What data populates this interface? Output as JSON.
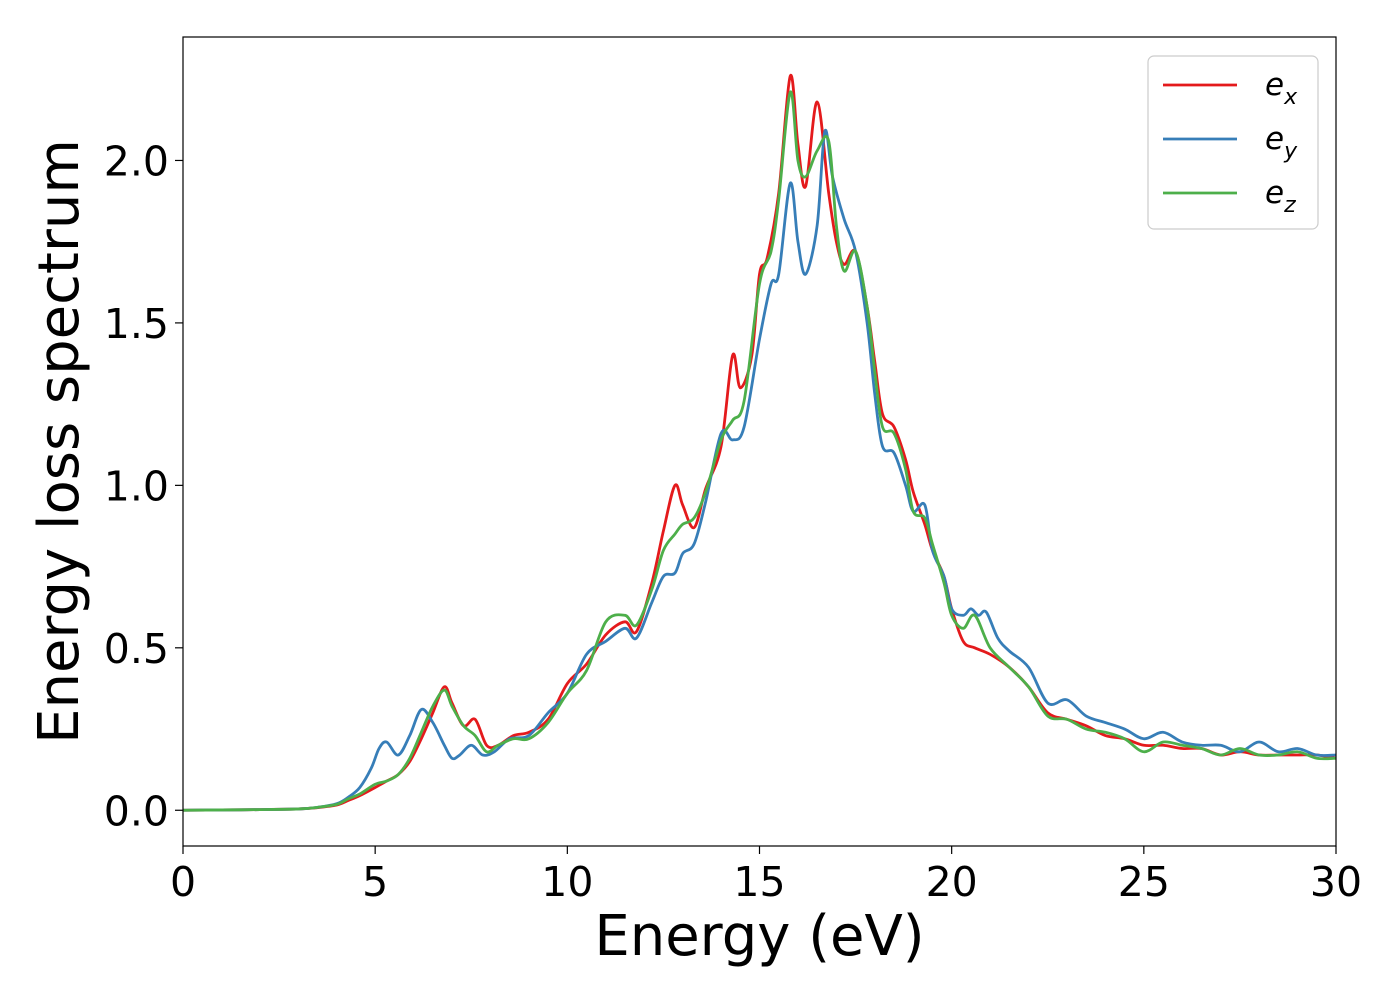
{
  "chart_data": {
    "type": "line",
    "title": "",
    "xlabel": "Energy (eV)",
    "ylabel": "Energy loss spectrum",
    "xlim": [
      0,
      30
    ],
    "ylim": [
      -0.11,
      2.38
    ],
    "xticks": [
      0,
      5,
      10,
      15,
      20,
      25,
      30
    ],
    "xtick_labels": [
      "0",
      "5",
      "10",
      "15",
      "20",
      "25",
      "30"
    ],
    "yticks": [
      0.0,
      0.5,
      1.0,
      1.5,
      2.0
    ],
    "ytick_labels": [
      "0.0",
      "0.5",
      "1.0",
      "1.5",
      "2.0"
    ],
    "grid": false,
    "legend_position": "top-right",
    "series": [
      {
        "name": "e",
        "subscript": "x",
        "color": "#e41a1c",
        "x": [
          0,
          1,
          2,
          3,
          3.5,
          4,
          4.3,
          4.6,
          5,
          5.3,
          5.6,
          5.9,
          6.2,
          6.5,
          6.8,
          7.0,
          7.3,
          7.6,
          7.9,
          8.2,
          8.6,
          9.0,
          9.5,
          10,
          10.5,
          11,
          11.5,
          11.8,
          12.2,
          12.5,
          12.8,
          13.0,
          13.3,
          13.6,
          14.0,
          14.3,
          14.5,
          14.8,
          15.0,
          15.2,
          15.5,
          15.8,
          16.0,
          16.2,
          16.5,
          16.8,
          17.0,
          17.2,
          17.5,
          17.8,
          18.0,
          18.2,
          18.5,
          18.8,
          19.0,
          19.3,
          19.5,
          19.8,
          20.0,
          20.3,
          20.6,
          21.0,
          21.5,
          22.0,
          22.5,
          23.0,
          23.5,
          24.0,
          24.5,
          25.0,
          25.5,
          26.0,
          26.5,
          27.0,
          27.5,
          28.0,
          28.5,
          29.0,
          29.5,
          30
        ],
        "y": [
          0.0,
          0.001,
          0.002,
          0.004,
          0.008,
          0.016,
          0.03,
          0.045,
          0.07,
          0.09,
          0.11,
          0.15,
          0.22,
          0.3,
          0.38,
          0.33,
          0.26,
          0.28,
          0.2,
          0.2,
          0.23,
          0.24,
          0.28,
          0.39,
          0.45,
          0.54,
          0.58,
          0.55,
          0.7,
          0.86,
          1.0,
          0.94,
          0.87,
          0.99,
          1.12,
          1.4,
          1.3,
          1.4,
          1.65,
          1.7,
          1.9,
          2.26,
          2.05,
          1.92,
          2.18,
          1.9,
          1.75,
          1.68,
          1.72,
          1.55,
          1.38,
          1.22,
          1.18,
          1.08,
          0.98,
          0.88,
          0.8,
          0.72,
          0.62,
          0.52,
          0.5,
          0.48,
          0.44,
          0.38,
          0.3,
          0.28,
          0.26,
          0.23,
          0.22,
          0.2,
          0.2,
          0.19,
          0.19,
          0.17,
          0.18,
          0.17,
          0.17,
          0.17,
          0.17,
          0.16
        ]
      },
      {
        "name": "e",
        "subscript": "y",
        "color": "#377eb8",
        "x": [
          0,
          1,
          2,
          3,
          3.5,
          4,
          4.3,
          4.6,
          4.9,
          5.1,
          5.3,
          5.6,
          5.9,
          6.2,
          6.5,
          6.8,
          7.0,
          7.2,
          7.5,
          7.8,
          8.1,
          8.5,
          9.0,
          9.5,
          10,
          10.5,
          11,
          11.5,
          11.8,
          12.2,
          12.5,
          12.8,
          13.0,
          13.3,
          13.6,
          14.0,
          14.3,
          14.6,
          15.0,
          15.3,
          15.5,
          15.8,
          16.0,
          16.2,
          16.5,
          16.7,
          16.9,
          17.2,
          17.5,
          17.8,
          18.0,
          18.2,
          18.5,
          18.8,
          19.0,
          19.3,
          19.5,
          19.8,
          20.0,
          20.3,
          20.5,
          20.7,
          20.9,
          21.2,
          21.5,
          22.0,
          22.5,
          23.0,
          23.5,
          24.0,
          24.5,
          25.0,
          25.5,
          26.0,
          26.5,
          27.0,
          27.5,
          28.0,
          28.5,
          29.0,
          29.5,
          30
        ],
        "y": [
          0.0,
          0.001,
          0.002,
          0.004,
          0.009,
          0.02,
          0.04,
          0.07,
          0.13,
          0.19,
          0.21,
          0.17,
          0.23,
          0.31,
          0.27,
          0.2,
          0.16,
          0.17,
          0.2,
          0.17,
          0.18,
          0.22,
          0.23,
          0.3,
          0.36,
          0.48,
          0.52,
          0.56,
          0.53,
          0.64,
          0.72,
          0.73,
          0.79,
          0.82,
          0.95,
          1.16,
          1.14,
          1.18,
          1.45,
          1.62,
          1.65,
          1.93,
          1.75,
          1.65,
          1.8,
          2.09,
          1.95,
          1.82,
          1.72,
          1.5,
          1.28,
          1.12,
          1.1,
          1.0,
          0.92,
          0.94,
          0.8,
          0.72,
          0.62,
          0.6,
          0.62,
          0.6,
          0.61,
          0.53,
          0.49,
          0.44,
          0.33,
          0.34,
          0.29,
          0.27,
          0.25,
          0.22,
          0.24,
          0.21,
          0.2,
          0.2,
          0.18,
          0.21,
          0.18,
          0.19,
          0.17,
          0.17
        ]
      },
      {
        "name": "e",
        "subscript": "z",
        "color": "#4daf4a",
        "x": [
          0,
          1,
          2,
          3,
          3.5,
          4,
          4.3,
          4.6,
          5,
          5.3,
          5.6,
          5.9,
          6.2,
          6.5,
          6.8,
          7.0,
          7.3,
          7.6,
          7.9,
          8.2,
          8.6,
          9.0,
          9.5,
          10,
          10.5,
          11,
          11.5,
          11.8,
          12.2,
          12.5,
          12.8,
          13.0,
          13.3,
          13.6,
          14.0,
          14.3,
          14.6,
          15.0,
          15.3,
          15.5,
          15.8,
          16.0,
          16.2,
          16.5,
          16.8,
          17.0,
          17.2,
          17.5,
          17.8,
          18.0,
          18.2,
          18.5,
          18.8,
          19.0,
          19.3,
          19.5,
          19.8,
          20.0,
          20.3,
          20.6,
          21.0,
          21.5,
          22.0,
          22.5,
          23.0,
          23.5,
          24.0,
          24.5,
          25.0,
          25.5,
          26.0,
          26.5,
          27.0,
          27.5,
          28.0,
          28.5,
          29.0,
          29.5,
          30
        ],
        "y": [
          0.0,
          0.001,
          0.002,
          0.004,
          0.009,
          0.018,
          0.035,
          0.05,
          0.08,
          0.09,
          0.11,
          0.16,
          0.24,
          0.32,
          0.37,
          0.32,
          0.26,
          0.23,
          0.18,
          0.2,
          0.22,
          0.22,
          0.27,
          0.36,
          0.43,
          0.58,
          0.6,
          0.57,
          0.68,
          0.8,
          0.85,
          0.88,
          0.9,
          0.98,
          1.14,
          1.2,
          1.26,
          1.62,
          1.72,
          1.88,
          2.21,
          2.0,
          1.95,
          2.03,
          2.06,
          1.8,
          1.66,
          1.72,
          1.55,
          1.35,
          1.18,
          1.16,
          1.05,
          0.92,
          0.9,
          0.82,
          0.7,
          0.6,
          0.56,
          0.6,
          0.5,
          0.44,
          0.38,
          0.29,
          0.28,
          0.25,
          0.24,
          0.22,
          0.18,
          0.21,
          0.2,
          0.19,
          0.17,
          0.19,
          0.17,
          0.17,
          0.18,
          0.16,
          0.16
        ]
      }
    ]
  }
}
